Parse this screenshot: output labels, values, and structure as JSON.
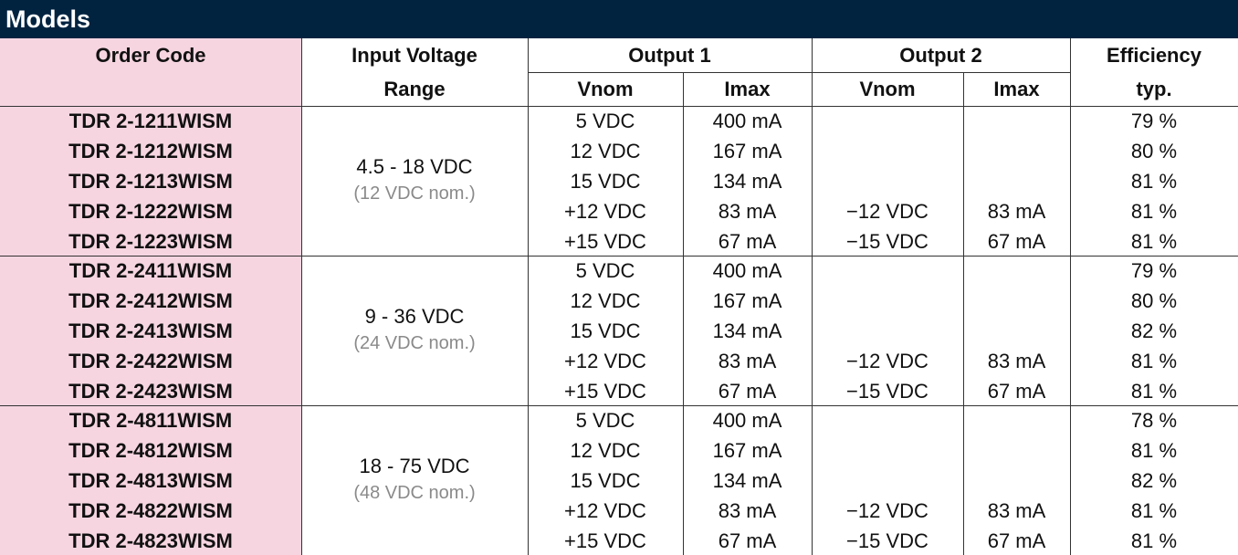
{
  "header": {
    "title": "Models",
    "order_code": "Order Code",
    "input_voltage": [
      "Input Voltage",
      "Range"
    ],
    "output1": {
      "label": "Output 1",
      "vnom": "Vnom",
      "imax": "Imax"
    },
    "output2": {
      "label": "Output 2",
      "vnom": "Vnom",
      "imax": "Imax"
    },
    "efficiency": [
      "Efficiency",
      "typ."
    ]
  },
  "groups": [
    {
      "input_range": "4.5 - 18 VDC",
      "input_nom": "(12 VDC nom.)",
      "rows": [
        {
          "code": "TDR 2-1211WISM",
          "out1_vnom": "5 VDC",
          "out1_imax": "400 mA",
          "efficiency": "79 %"
        },
        {
          "code": "TDR 2-1212WISM",
          "out1_vnom": "12 VDC",
          "out1_imax": "167 mA",
          "efficiency": "80 %"
        },
        {
          "code": "TDR 2-1213WISM",
          "out1_vnom": "15 VDC",
          "out1_imax": "134 mA",
          "efficiency": "81 %"
        },
        {
          "code": "TDR 2-1222WISM",
          "out1_vnom": "+12 VDC",
          "out1_imax": "83 mA",
          "out2_vnom": "−12 VDC",
          "out2_imax": "83 mA",
          "efficiency": "81 %"
        },
        {
          "code": "TDR 2-1223WISM",
          "out1_vnom": "+15 VDC",
          "out1_imax": "67 mA",
          "out2_vnom": "−15 VDC",
          "out2_imax": "67 mA",
          "efficiency": "81 %"
        }
      ]
    },
    {
      "input_range": "9 - 36 VDC",
      "input_nom": "(24 VDC nom.)",
      "rows": [
        {
          "code": "TDR 2-2411WISM",
          "out1_vnom": "5 VDC",
          "out1_imax": "400 mA",
          "efficiency": "79 %"
        },
        {
          "code": "TDR 2-2412WISM",
          "out1_vnom": "12 VDC",
          "out1_imax": "167 mA",
          "efficiency": "80 %"
        },
        {
          "code": "TDR 2-2413WISM",
          "out1_vnom": "15 VDC",
          "out1_imax": "134 mA",
          "efficiency": "82 %"
        },
        {
          "code": "TDR 2-2422WISM",
          "out1_vnom": "+12 VDC",
          "out1_imax": "83 mA",
          "out2_vnom": "−12 VDC",
          "out2_imax": "83 mA",
          "efficiency": "81 %"
        },
        {
          "code": "TDR 2-2423WISM",
          "out1_vnom": "+15 VDC",
          "out1_imax": "67 mA",
          "out2_vnom": "−15 VDC",
          "out2_imax": "67 mA",
          "efficiency": "81 %"
        }
      ]
    },
    {
      "input_range": "18 - 75 VDC",
      "input_nom": "(48 VDC nom.)",
      "rows": [
        {
          "code": "TDR 2-4811WISM",
          "out1_vnom": "5 VDC",
          "out1_imax": "400 mA",
          "efficiency": "78 %"
        },
        {
          "code": "TDR 2-4812WISM",
          "out1_vnom": "12 VDC",
          "out1_imax": "167 mA",
          "efficiency": "81 %"
        },
        {
          "code": "TDR 2-4813WISM",
          "out1_vnom": "15 VDC",
          "out1_imax": "134 mA",
          "efficiency": "82 %"
        },
        {
          "code": "TDR 2-4822WISM",
          "out1_vnom": "+12 VDC",
          "out1_imax": "83 mA",
          "out2_vnom": "−12 VDC",
          "out2_imax": "83 mA",
          "efficiency": "81 %"
        },
        {
          "code": "TDR 2-4823WISM",
          "out1_vnom": "+15 VDC",
          "out1_imax": "67 mA",
          "out2_vnom": "−15 VDC",
          "out2_imax": "67 mA",
          "efficiency": "81 %"
        }
      ]
    }
  ]
}
